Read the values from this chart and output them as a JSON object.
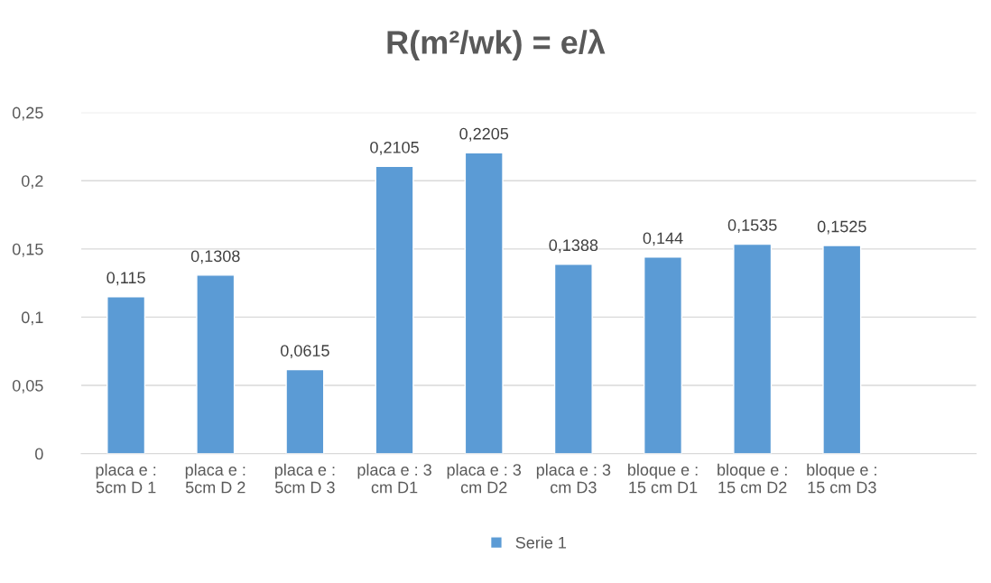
{
  "chart_data": {
    "type": "bar",
    "title": "R(m²/wk) = e/λ",
    "categories": [
      "placa e :\n5cm D 1",
      "placa e :\n5cm D 2",
      "placa e :\n5cm D 3",
      "placa e : 3\ncm D1",
      "placa e : 3\ncm D2",
      "placa e : 3\ncm D3",
      "bloque e :\n15 cm D1",
      "bloque e :\n15 cm D2",
      "bloque e :\n15 cm D3",
      null
    ],
    "series": [
      {
        "name": "Serie 1",
        "color": "#5b9bd5",
        "values": [
          0.115,
          0.1308,
          0.0615,
          0.2105,
          0.2205,
          0.1388,
          0.144,
          0.1535,
          0.1525,
          null
        ],
        "value_labels": [
          "0,115",
          "0,1308",
          "0,0615",
          "0,2105",
          "0,2205",
          "0,1388",
          "0,144",
          "0,1535",
          "0,1525",
          null
        ]
      }
    ],
    "ylim": [
      0,
      0.25
    ],
    "yticks": [
      {
        "value": 0,
        "label": "0"
      },
      {
        "value": 0.05,
        "label": "0,05"
      },
      {
        "value": 0.1,
        "label": "0,1"
      },
      {
        "value": 0.15,
        "label": "0,15"
      },
      {
        "value": 0.2,
        "label": "0,2"
      },
      {
        "value": 0.25,
        "label": "0,25"
      }
    ],
    "grid": "y",
    "legend": "bottom"
  }
}
